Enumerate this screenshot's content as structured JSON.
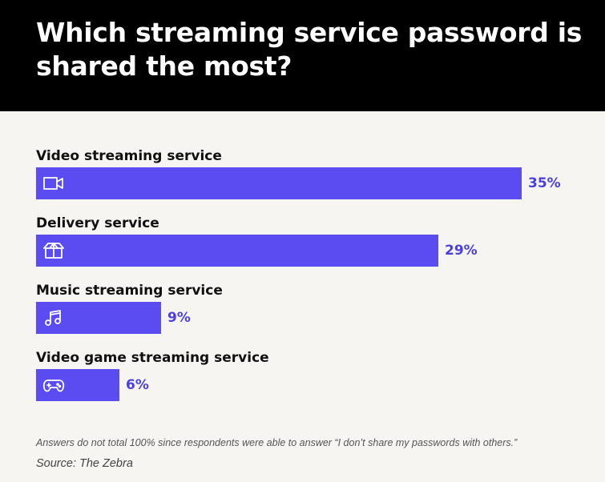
{
  "chart_data": {
    "type": "bar",
    "orientation": "horizontal",
    "title": "Which streaming service password is shared the most?",
    "categories": [
      "Video streaming service",
      "Delivery service",
      "Music streaming service",
      "Video game streaming service"
    ],
    "values": [
      35,
      29,
      9,
      6
    ],
    "value_labels": [
      "35%",
      "29%",
      "9%",
      "6%"
    ],
    "icons": [
      "video-camera-icon",
      "box-icon",
      "music-note-icon",
      "gamepad-icon"
    ],
    "xlim": [
      0,
      35
    ],
    "grid": false,
    "legend": "none",
    "bar_color": "#5a4cf0",
    "value_label_color": "#4b3fe0"
  },
  "footer": {
    "note": "Answers do not total 100% since respondents were able to answer “I don’t share my passwords with others.”",
    "source": "Source: The Zebra"
  },
  "colors": {
    "header_background": "#000000",
    "page_background": "#f6f5f1"
  }
}
